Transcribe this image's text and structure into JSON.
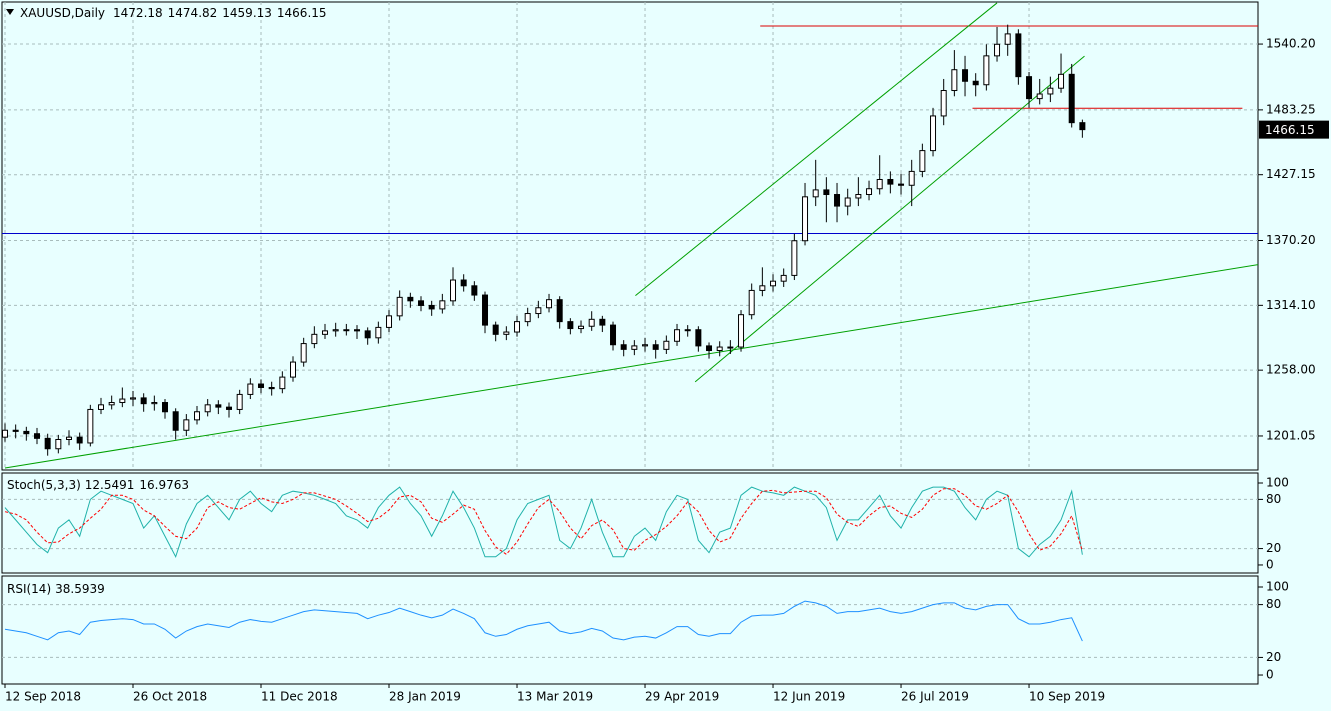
{
  "chart_data": [
    {
      "type": "candlestick",
      "title": "XAUUSD,Daily",
      "categories": [
        "12 Sep 2018",
        null,
        null,
        null,
        null,
        null,
        null,
        null,
        null,
        null,
        null,
        null,
        "26 Oct 2018",
        null,
        null,
        null,
        null,
        null,
        null,
        null,
        null,
        null,
        null,
        null,
        "11 Dec 2018",
        null,
        null,
        null,
        null,
        null,
        null,
        null,
        null,
        null,
        null,
        null,
        "28 Jan 2019",
        null,
        null,
        null,
        null,
        null,
        null,
        null,
        null,
        null,
        null,
        null,
        "13 Mar 2019",
        null,
        null,
        null,
        null,
        null,
        null,
        null,
        null,
        null,
        null,
        null,
        "29 Apr 2019",
        null,
        null,
        null,
        null,
        null,
        null,
        null,
        null,
        null,
        null,
        null,
        "12 Jun 2019",
        null,
        null,
        null,
        null,
        null,
        null,
        null,
        null,
        null,
        null,
        null,
        "26 Jul 2019",
        null,
        null,
        null,
        null,
        null,
        null,
        null,
        null,
        null,
        null,
        null,
        "10 Sep 2019",
        null,
        null,
        null,
        null,
        null
      ],
      "open": [
        1200,
        1206,
        1205,
        1203,
        1199,
        1190,
        1198,
        1200,
        1195,
        1224,
        1228,
        1230,
        1233,
        1234,
        1229,
        1230,
        1222,
        1206,
        1215,
        1222,
        1228,
        1226,
        1224,
        1237,
        1246,
        1243,
        1242,
        1252,
        1265,
        1281,
        1289,
        1292,
        1293,
        1293,
        1292,
        1286,
        1295,
        1305,
        1321,
        1318,
        1314,
        1311,
        1318,
        1336,
        1331,
        1323,
        1297,
        1289,
        1291,
        1300,
        1307,
        1312,
        1319,
        1300,
        1294,
        1296,
        1302,
        1297,
        1280,
        1276,
        1279,
        1280,
        1276,
        1283,
        1293,
        1293,
        1279,
        1275,
        1278,
        1278,
        1306,
        1327,
        1331,
        1335,
        1340,
        1370,
        1408,
        1414,
        1410,
        1400,
        1407,
        1410,
        1415,
        1423,
        1419,
        1418,
        1430,
        1448,
        1478,
        1500,
        1518,
        1508,
        1505,
        1530,
        1540,
        1549,
        1512,
        1493,
        1497,
        1502,
        1514,
        1472.18
      ],
      "high": [
        1212,
        1211,
        1209,
        1208,
        1203,
        1202,
        1206,
        1204,
        1228,
        1234,
        1236,
        1243,
        1240,
        1238,
        1236,
        1233,
        1225,
        1220,
        1227,
        1233,
        1232,
        1230,
        1241,
        1251,
        1250,
        1248,
        1257,
        1270,
        1286,
        1296,
        1298,
        1299,
        1298,
        1297,
        1295,
        1300,
        1310,
        1327,
        1325,
        1322,
        1318,
        1324,
        1347,
        1341,
        1335,
        1326,
        1300,
        1296,
        1305,
        1312,
        1318,
        1324,
        1322,
        1303,
        1301,
        1309,
        1305,
        1300,
        1284,
        1284,
        1286,
        1284,
        1288,
        1298,
        1297,
        1296,
        1282,
        1283,
        1284,
        1310,
        1333,
        1347,
        1341,
        1346,
        1376,
        1420,
        1440,
        1425,
        1420,
        1415,
        1425,
        1422,
        1444,
        1430,
        1428,
        1440,
        1454,
        1485,
        1510,
        1535,
        1530,
        1515,
        1540,
        1555,
        1557,
        1553,
        1516,
        1510,
        1512,
        1532,
        1523,
        1474.82
      ],
      "low": [
        1196,
        1199,
        1197,
        1194,
        1184,
        1186,
        1193,
        1189,
        1192,
        1220,
        1224,
        1226,
        1227,
        1222,
        1223,
        1216,
        1198,
        1201,
        1211,
        1218,
        1220,
        1217,
        1220,
        1233,
        1238,
        1236,
        1238,
        1248,
        1261,
        1277,
        1285,
        1287,
        1288,
        1285,
        1280,
        1281,
        1291,
        1301,
        1312,
        1309,
        1305,
        1307,
        1314,
        1326,
        1318,
        1290,
        1283,
        1284,
        1287,
        1296,
        1303,
        1308,
        1294,
        1289,
        1290,
        1292,
        1291,
        1275,
        1270,
        1271,
        1274,
        1268,
        1272,
        1279,
        1287,
        1274,
        1268,
        1270,
        1272,
        1274,
        1302,
        1322,
        1326,
        1330,
        1336,
        1366,
        1400,
        1386,
        1386,
        1392,
        1400,
        1405,
        1410,
        1411,
        1410,
        1400,
        1425,
        1443,
        1470,
        1495,
        1495,
        1495,
        1500,
        1525,
        1530,
        1505,
        1485,
        1488,
        1490,
        1498,
        1468,
        1459.13
      ],
      "close": [
        1206,
        1205,
        1203,
        1199,
        1190,
        1198,
        1200,
        1195,
        1224,
        1228,
        1230,
        1233,
        1234,
        1229,
        1230,
        1222,
        1206,
        1215,
        1222,
        1228,
        1226,
        1224,
        1237,
        1246,
        1243,
        1242,
        1252,
        1265,
        1281,
        1289,
        1292,
        1293,
        1293,
        1292,
        1286,
        1295,
        1305,
        1321,
        1318,
        1314,
        1311,
        1318,
        1336,
        1331,
        1323,
        1297,
        1289,
        1291,
        1300,
        1307,
        1312,
        1319,
        1300,
        1294,
        1296,
        1302,
        1297,
        1280,
        1276,
        1279,
        1280,
        1276,
        1283,
        1293,
        1293,
        1279,
        1275,
        1278,
        1278,
        1306,
        1327,
        1331,
        1335,
        1340,
        1370,
        1408,
        1414,
        1410,
        1400,
        1407,
        1410,
        1415,
        1423,
        1419,
        1418,
        1430,
        1448,
        1478,
        1500,
        1518,
        1508,
        1505,
        1530,
        1540,
        1549,
        1512,
        1493,
        1497,
        1502,
        1514,
        1472.18,
        1466.15
      ],
      "up_color": "#ffffff",
      "down_color": "#000000",
      "ylim": [
        1171.6,
        1576.6
      ],
      "yticks": [
        {
          "value": 1201.05,
          "label": "1201.05"
        },
        {
          "value": 1258,
          "label": "1258.00"
        },
        {
          "value": 1314.1,
          "label": "1314.10"
        },
        {
          "value": 1370.2,
          "label": "1370.20"
        },
        {
          "value": 1427.15,
          "label": "1427.15"
        },
        {
          "value": 1483.25,
          "label": "1483.25"
        },
        {
          "value": 1540.2,
          "label": "1540.20"
        }
      ],
      "grid": true,
      "drawings": [
        {
          "kind": "hline",
          "color": "#0000cc",
          "value": 1376.3
        },
        {
          "kind": "segment",
          "color": "#dd0000",
          "points": [
            [
              70.8,
              1555.8
            ],
            [
              117.5,
              1555.8
            ]
          ]
        },
        {
          "kind": "segment",
          "color": "#dd0000",
          "points": [
            [
              90.7,
              1484.7
            ],
            [
              116,
              1484.7
            ]
          ]
        },
        {
          "kind": "segment",
          "color": "#00a000",
          "points": [
            [
              0,
              1173.3
            ],
            [
              117.5,
              1349.4
            ]
          ]
        },
        {
          "kind": "segment",
          "color": "#00a000",
          "points": [
            [
              59.1,
              1322.5
            ],
            [
              93,
              1575.8
            ]
          ]
        },
        {
          "kind": "segment",
          "color": "#00a000",
          "points": [
            [
              64.7,
              1247.9
            ],
            [
              101.2,
              1529.8
            ]
          ]
        }
      ]
    },
    {
      "type": "line",
      "title": "Stoch(5,3,3)",
      "series": [
        {
          "color": "#20b2aa",
          "dashed": false,
          "values": [
            70,
            55,
            40,
            25,
            15,
            45,
            55,
            35,
            80,
            90,
            85,
            80,
            75,
            45,
            60,
            35,
            10,
            50,
            75,
            85,
            70,
            55,
            80,
            90,
            75,
            65,
            85,
            90,
            88,
            85,
            80,
            75,
            60,
            55,
            45,
            70,
            85,
            95,
            75,
            60,
            35,
            60,
            90,
            70,
            45,
            10,
            10,
            20,
            55,
            75,
            80,
            85,
            30,
            20,
            45,
            80,
            40,
            10,
            10,
            35,
            45,
            30,
            65,
            85,
            80,
            30,
            15,
            40,
            45,
            85,
            95,
            90,
            88,
            85,
            95,
            90,
            85,
            70,
            30,
            55,
            55,
            70,
            85,
            60,
            45,
            70,
            90,
            95,
            95,
            90,
            70,
            55,
            80,
            90,
            85,
            20,
            10,
            25,
            35,
            55,
            90,
            12.5491
          ]
        },
        {
          "color": "#ff0000",
          "dashed": true,
          "values": [
            65,
            62,
            55,
            40,
            27,
            28,
            38,
            45,
            57,
            68,
            85,
            85,
            80,
            67,
            60,
            47,
            35,
            32,
            45,
            70,
            77,
            70,
            68,
            75,
            82,
            77,
            75,
            80,
            88,
            88,
            84,
            80,
            72,
            63,
            53,
            57,
            67,
            83,
            85,
            77,
            57,
            52,
            62,
            73,
            68,
            42,
            22,
            13,
            28,
            50,
            70,
            80,
            65,
            45,
            32,
            48,
            55,
            43,
            20,
            18,
            30,
            37,
            47,
            60,
            77,
            65,
            42,
            28,
            33,
            57,
            75,
            90,
            91,
            88,
            89,
            90,
            90,
            82,
            62,
            52,
            47,
            60,
            70,
            72,
            63,
            58,
            68,
            85,
            93,
            93,
            85,
            72,
            68,
            75,
            85,
            65,
            38,
            18,
            23,
            38,
            60,
            16.9763
          ]
        }
      ],
      "ylim": [
        -9.8,
        112.2
      ],
      "yticks": [
        0,
        20,
        80,
        100
      ],
      "levels": [
        20,
        80
      ]
    },
    {
      "type": "line",
      "title": "RSI(14)",
      "series": [
        {
          "color": "#1e90ff",
          "dashed": false,
          "values": [
            52,
            50,
            48,
            44,
            40,
            48,
            50,
            46,
            60,
            62,
            63,
            64,
            63,
            58,
            58,
            52,
            42,
            50,
            55,
            58,
            56,
            54,
            60,
            63,
            61,
            60,
            64,
            68,
            72,
            74,
            73,
            72,
            71,
            70,
            64,
            68,
            71,
            76,
            72,
            68,
            65,
            68,
            75,
            70,
            64,
            48,
            44,
            46,
            52,
            56,
            58,
            60,
            50,
            47,
            49,
            53,
            50,
            42,
            40,
            43,
            44,
            42,
            48,
            55,
            55,
            46,
            44,
            47,
            47,
            60,
            67,
            68,
            68,
            70,
            78,
            84,
            82,
            78,
            70,
            72,
            72,
            74,
            76,
            72,
            70,
            72,
            76,
            80,
            82,
            82,
            76,
            74,
            78,
            80,
            80,
            64,
            58,
            58,
            60,
            63,
            65,
            38.5939
          ]
        }
      ],
      "ylim": [
        -10.2,
        112.5
      ],
      "yticks": [
        0,
        20,
        80,
        100
      ],
      "levels": [
        20,
        80
      ]
    }
  ]
}
